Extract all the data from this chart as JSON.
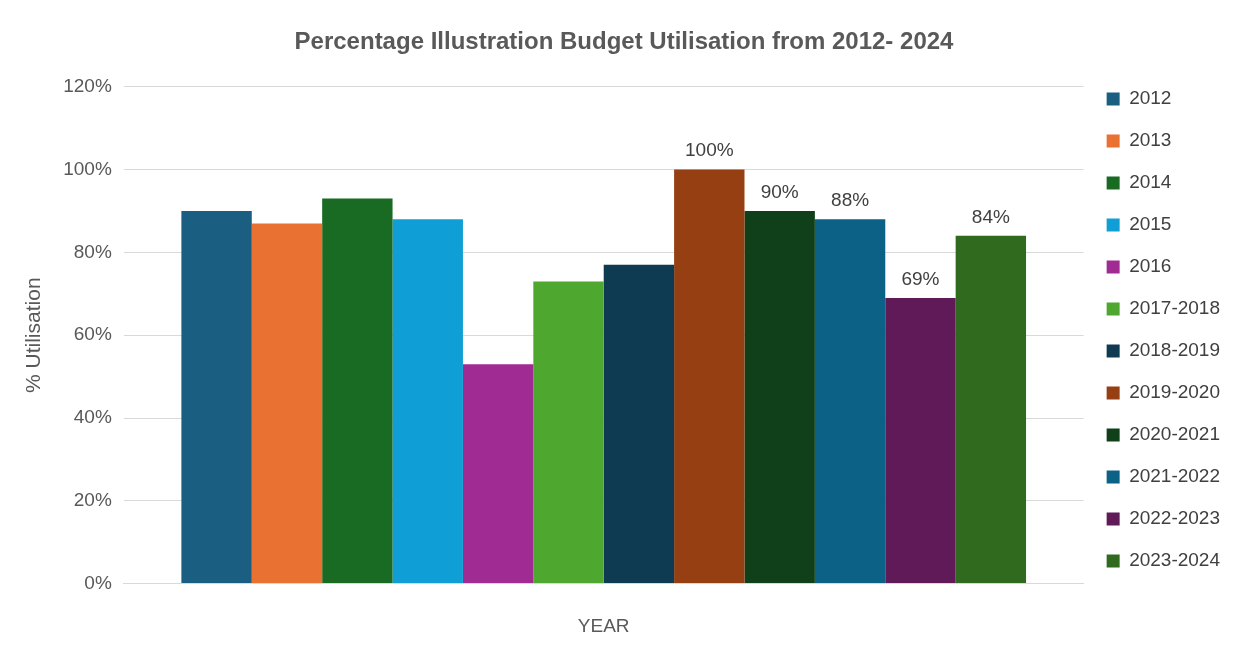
{
  "chart_data": {
    "type": "bar",
    "title": "Percentage Illustration Budget Utilisation from 2012- 2024",
    "xlabel": "YEAR",
    "ylabel": "% Utilisation",
    "categories": [
      null
    ],
    "series": [
      {
        "name": "2012",
        "color": "#1a5e82",
        "values": [
          90
        ]
      },
      {
        "name": "2013",
        "color": "#e97132",
        "values": [
          87
        ]
      },
      {
        "name": "2014",
        "color": "#196b24",
        "values": [
          93
        ]
      },
      {
        "name": "2015",
        "color": "#0f9ed5",
        "values": [
          88
        ]
      },
      {
        "name": "2016",
        "color": "#a02b93",
        "values": [
          53
        ]
      },
      {
        "name": "2017-2018",
        "color": "#4ea72e",
        "values": [
          73
        ]
      },
      {
        "name": "2018-2019",
        "color": "#0e3a52",
        "values": [
          77
        ]
      },
      {
        "name": "2019-2020",
        "color": "#953f12",
        "values": [
          100
        ],
        "value_labels": [
          "100%"
        ]
      },
      {
        "name": "2020-2021",
        "color": "#10401a",
        "values": [
          90
        ],
        "value_labels": [
          "90%"
        ]
      },
      {
        "name": "2021-2022",
        "color": "#0b6186",
        "values": [
          88
        ],
        "value_labels": [
          "88%"
        ]
      },
      {
        "name": "2022-2023",
        "color": "#601a58",
        "values": [
          69
        ],
        "value_labels": [
          "69%"
        ]
      },
      {
        "name": "2023-2024",
        "color": "#2f6a1e",
        "values": [
          84
        ],
        "value_labels": [
          "84%"
        ]
      }
    ],
    "ylim": [
      0,
      120
    ],
    "yticks": [
      {
        "value": 0,
        "label": "0%"
      },
      {
        "value": 20,
        "label": "20%"
      },
      {
        "value": 40,
        "label": "40%"
      },
      {
        "value": 60,
        "label": "60%"
      },
      {
        "value": 80,
        "label": "80%"
      },
      {
        "value": 100,
        "label": "100%"
      },
      {
        "value": 120,
        "label": "120%"
      }
    ],
    "grid": "y",
    "legend": "right"
  }
}
